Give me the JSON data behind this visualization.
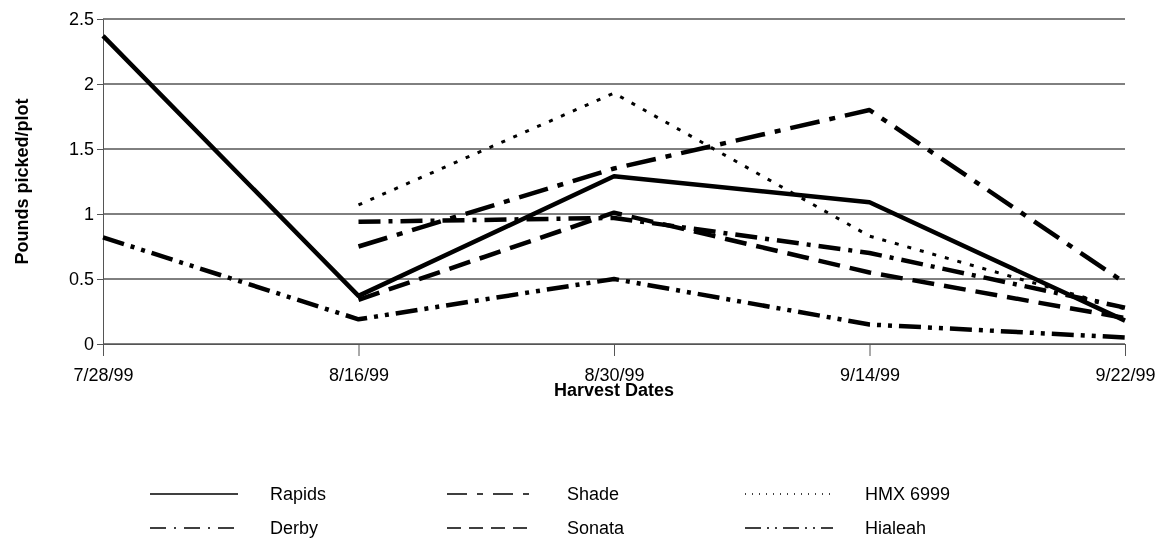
{
  "chart_data": {
    "type": "line",
    "xlabel": "Harvest Dates",
    "ylabel": "Pounds picked/plot",
    "categories": [
      "7/28/99",
      "8/16/99",
      "8/30/99",
      "9/14/99",
      "9/22/99"
    ],
    "ylim": [
      0,
      2.5
    ],
    "yticks": [
      0,
      0.5,
      1,
      1.5,
      2,
      2.5
    ],
    "grid": "y",
    "legend": "bottom",
    "marker": "none",
    "series": [
      {
        "name": "Rapids",
        "color": "#000000",
        "line_style": "solid",
        "values": [
          2.37,
          0.37,
          1.29,
          1.09,
          0.18
        ]
      },
      {
        "name": "Shade",
        "color": "#000000",
        "line_style": "longdash",
        "values": [
          null,
          0.75,
          1.35,
          1.8,
          0.47
        ]
      },
      {
        "name": "HMX 6999",
        "color": "#000000",
        "line_style": "dotted",
        "values": [
          null,
          1.07,
          1.93,
          0.83,
          0.27
        ]
      },
      {
        "name": "Derby",
        "color": "#000000",
        "line_style": "dashdot",
        "values": [
          null,
          0.94,
          0.97,
          0.7,
          0.28
        ]
      },
      {
        "name": "Sonata",
        "color": "#000000",
        "line_style": "dashed",
        "values": [
          null,
          0.34,
          1.01,
          0.55,
          0.2
        ]
      },
      {
        "name": "Hialeah",
        "color": "#000000",
        "line_style": "dashdotdot",
        "values": [
          0.82,
          0.19,
          0.5,
          0.15,
          0.05
        ]
      }
    ]
  }
}
